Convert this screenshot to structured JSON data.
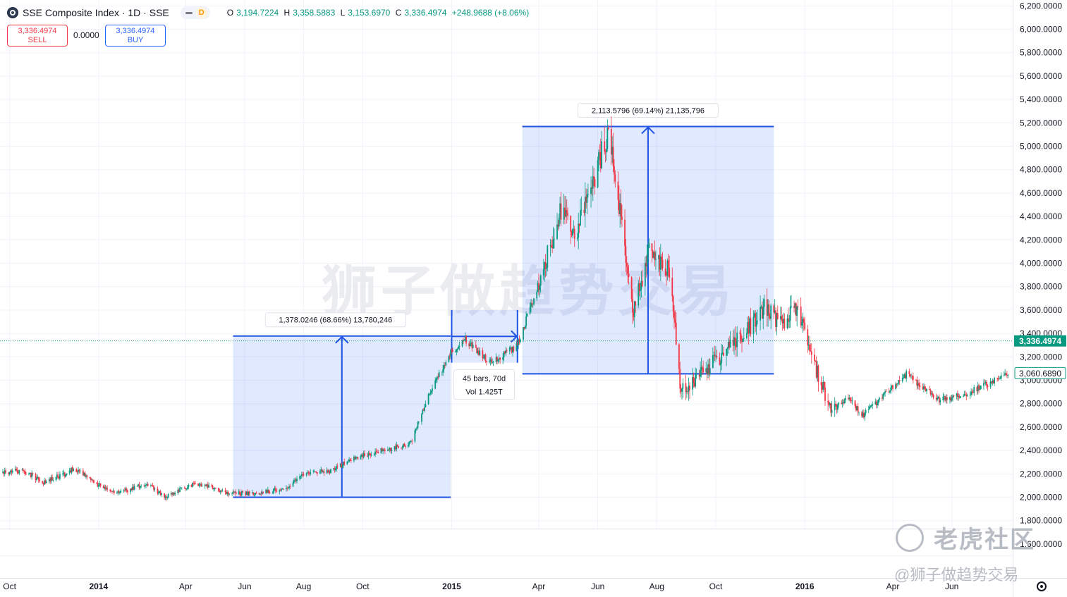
{
  "header": {
    "title": "SSE Composite Index · 1D · SSE",
    "interval_badge": "D",
    "ohlc": [
      {
        "k": "O",
        "v": "3,194.7224"
      },
      {
        "k": "H",
        "v": "3,358.5883"
      },
      {
        "k": "L",
        "v": "3,153.6970"
      },
      {
        "k": "C",
        "v": "3,336.4974"
      }
    ],
    "change": "+248.9688 (+8.06%)"
  },
  "trade": {
    "sell_price": "3,336.4974",
    "sell_label": "SELL",
    "spread": "0.0000",
    "buy_price": "3,336.4974",
    "buy_label": "BUY"
  },
  "colors": {
    "up": "#089981",
    "down": "#f23645",
    "accent": "#2962ff",
    "range_fill": "#2962ff",
    "range_line": "#1e53e5"
  },
  "watermark": {
    "center": "狮子做趋势交易",
    "corner": "老虎社区",
    "author": "@狮子做趋势交易"
  },
  "chart_data": {
    "type": "candlestick",
    "symbol": "SSE Composite Index",
    "interval": "1D",
    "y_axis": {
      "min": 1500,
      "max": 6250,
      "ticks": [
        1600,
        1800,
        2000,
        2200,
        2400,
        2600,
        2800,
        3000,
        3200,
        3400,
        3600,
        3800,
        4000,
        4200,
        4400,
        4600,
        4800,
        5000,
        5200,
        5400,
        5600,
        5800,
        6000,
        6200
      ],
      "tick_labels": [
        "1,600.0000",
        "1,800.0000",
        "2,000.0000",
        "2,200.0000",
        "2,400.0000",
        "2,600.0000",
        "2,800.0000",
        "3,000.0000",
        "3,200.0000",
        "3,400.0000",
        "3,600.0000",
        "3,800.0000",
        "4,000.0000",
        "4,200.0000",
        "4,400.0000",
        "4,600.0000",
        "4,800.0000",
        "5,000.0000",
        "5,200.0000",
        "5,400.0000",
        "5,600.0000",
        "5,800.0000",
        "6,000.0000",
        "6,200.0000"
      ]
    },
    "x_axis": {
      "range": [
        "2013-09-24",
        "2016-07-31"
      ],
      "ticks": [
        {
          "date": "2013-10-01",
          "label": "Oct"
        },
        {
          "date": "2014-01-01",
          "label": "2014"
        },
        {
          "date": "2014-04-01",
          "label": "Apr"
        },
        {
          "date": "2014-06-01",
          "label": "Jun"
        },
        {
          "date": "2014-08-01",
          "label": "Aug"
        },
        {
          "date": "2014-10-01",
          "label": "Oct"
        },
        {
          "date": "2015-01-01",
          "label": "2015"
        },
        {
          "date": "2015-04-01",
          "label": "Apr"
        },
        {
          "date": "2015-06-01",
          "label": "Jun"
        },
        {
          "date": "2015-08-01",
          "label": "Aug"
        },
        {
          "date": "2015-10-01",
          "label": "Oct"
        },
        {
          "date": "2016-01-01",
          "label": "2016"
        },
        {
          "date": "2016-04-01",
          "label": "Apr"
        },
        {
          "date": "2016-06-01",
          "label": "Jun"
        }
      ]
    },
    "price_path": [
      [
        "2013-09-24",
        2210
      ],
      [
        "2013-10-15",
        2230
      ],
      [
        "2013-11-05",
        2130
      ],
      [
        "2013-11-28",
        2200
      ],
      [
        "2013-12-06",
        2250
      ],
      [
        "2013-12-31",
        2110
      ],
      [
        "2014-01-20",
        2030
      ],
      [
        "2014-02-20",
        2120
      ],
      [
        "2014-03-10",
        2000
      ],
      [
        "2014-04-10",
        2120
      ],
      [
        "2014-05-20",
        2030
      ],
      [
        "2014-06-20",
        2040
      ],
      [
        "2014-07-15",
        2080
      ],
      [
        "2014-08-01",
        2200
      ],
      [
        "2014-09-01",
        2230
      ],
      [
        "2014-09-20",
        2330
      ],
      [
        "2014-10-31",
        2420
      ],
      [
        "2014-11-20",
        2460
      ],
      [
        "2014-12-09",
        2900
      ],
      [
        "2014-12-31",
        3230
      ],
      [
        "2015-01-15",
        3350
      ],
      [
        "2015-02-10",
        3150
      ],
      [
        "2015-03-10",
        3300
      ],
      [
        "2015-03-31",
        3800
      ],
      [
        "2015-04-27",
        4520
      ],
      [
        "2015-05-07",
        4200
      ],
      [
        "2015-05-28",
        4700
      ],
      [
        "2015-06-12",
        5150
      ],
      [
        "2015-07-08",
        3600
      ],
      [
        "2015-07-24",
        4100
      ],
      [
        "2015-08-14",
        3950
      ],
      [
        "2015-08-26",
        2900
      ],
      [
        "2015-09-15",
        3050
      ],
      [
        "2015-10-31",
        3400
      ],
      [
        "2015-11-20",
        3620
      ],
      [
        "2015-12-09",
        3470
      ],
      [
        "2015-12-25",
        3630
      ],
      [
        "2016-01-08",
        3200
      ],
      [
        "2016-01-28",
        2740
      ],
      [
        "2016-02-15",
        2840
      ],
      [
        "2016-03-01",
        2700
      ],
      [
        "2016-04-15",
        3050
      ],
      [
        "2016-05-20",
        2830
      ],
      [
        "2016-06-15",
        2880
      ],
      [
        "2016-07-31",
        3060
      ]
    ],
    "current_price": {
      "value": 3336.4974,
      "label": "3,336.4974"
    },
    "last_price": {
      "value": 3060.689,
      "label": "3,060.6890"
    },
    "measure_tools": [
      {
        "from": "2014-05-20",
        "to": "2014-12-31",
        "low": 2000,
        "high": 3378.0246,
        "label": "1,378.0246 (68.66%) 13,780,246"
      },
      {
        "from": "2015-01-01",
        "to": "2015-03-10",
        "low": 3150,
        "high": 3600,
        "label_line1": "45 bars, 70d",
        "label_line2": "Vol 1.425T"
      },
      {
        "from": "2015-03-15",
        "to": "2015-11-30",
        "low": 3055,
        "high": 5168.5,
        "label": "2,113.5796 (69.14%) 21,135,796"
      }
    ]
  }
}
